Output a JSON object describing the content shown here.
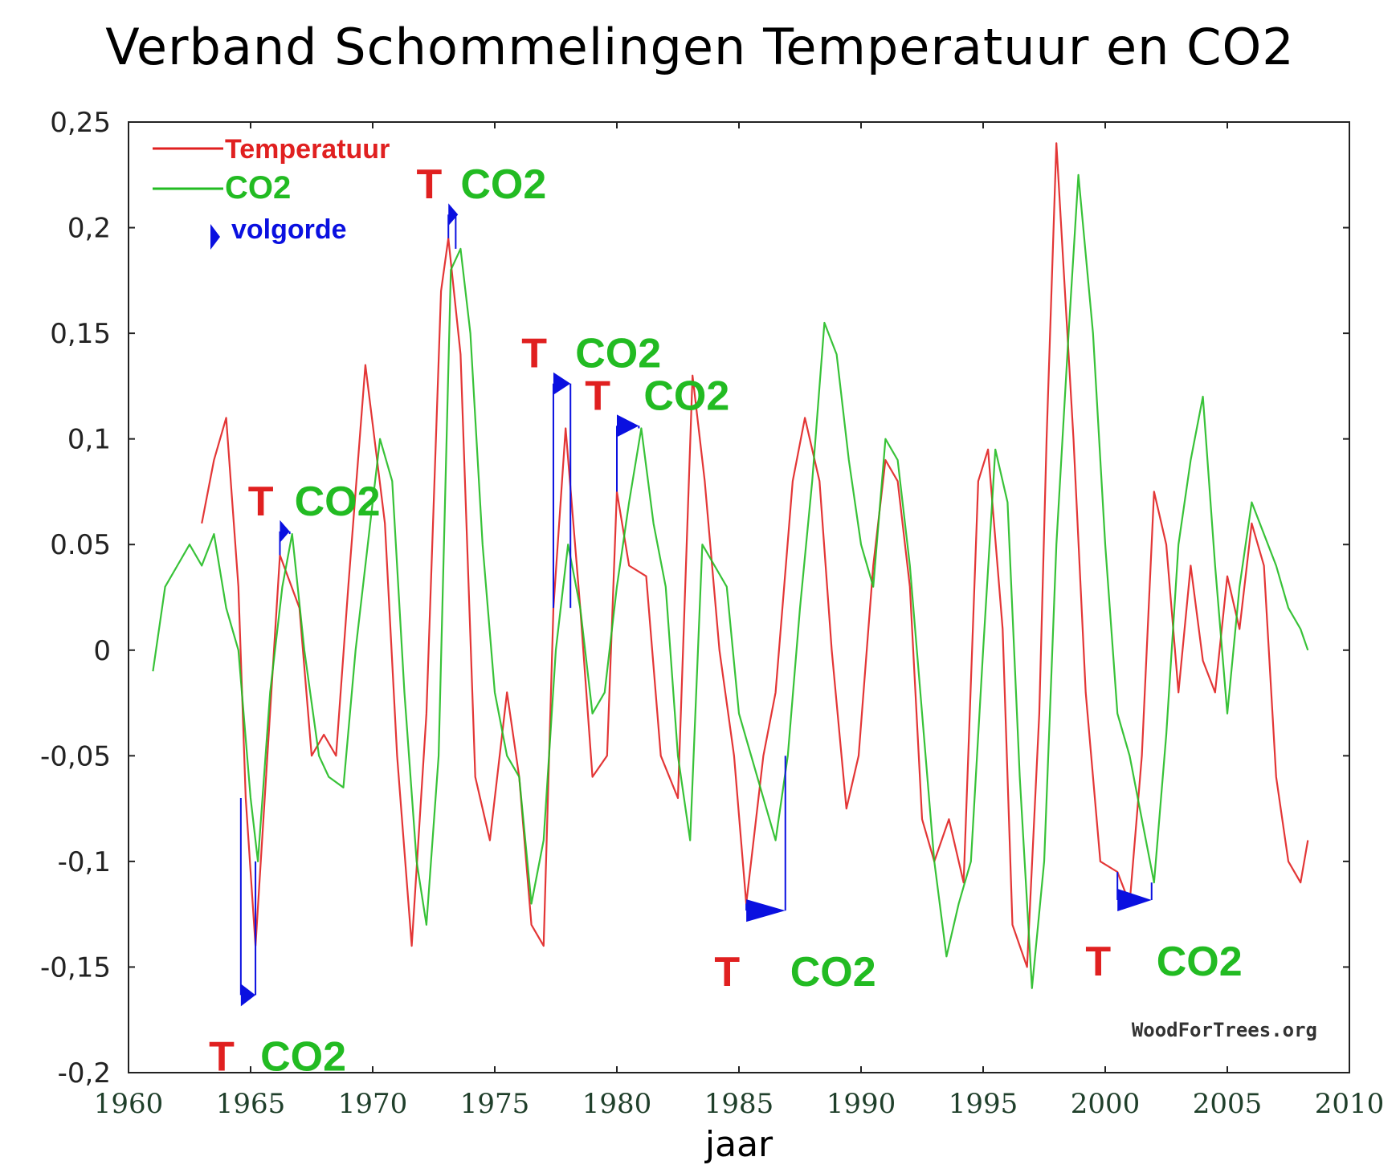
{
  "title": "Verband Schommelingen Temperatuur en CO2",
  "colors": {
    "temperature": "#e02020",
    "co2": "#22bb22",
    "arrow": "#0a10e0",
    "frame": "#222222"
  },
  "chart_data": {
    "type": "line",
    "xlabel": "jaar",
    "ylabel": "",
    "xlim": [
      1960,
      2010
    ],
    "ylim": [
      -0.2,
      0.25
    ],
    "x_ticks": [
      "1960",
      "1965",
      "1970",
      "1975",
      "1980",
      "1985",
      "1990",
      "1995",
      "2000",
      "2005",
      "2010"
    ],
    "x_tick_values": [
      1960,
      1965,
      1970,
      1975,
      1980,
      1985,
      1990,
      1995,
      2000,
      2005,
      2010
    ],
    "y_ticks": [
      "0,25",
      "0,2",
      "0,15",
      "0,1",
      "0.05",
      "0",
      "-0,05",
      "-0,1",
      "-0,15",
      "-0,2"
    ],
    "y_tick_values": [
      0.25,
      0.2,
      0.15,
      0.1,
      0.05,
      0,
      -0.05,
      -0.1,
      -0.15,
      -0.2
    ],
    "grid": false,
    "legend_position": "top-left",
    "legend": [
      {
        "name": "Temperatuur",
        "color": "#e02020"
      },
      {
        "name": "CO2",
        "color": "#22bb22"
      },
      {
        "name": "volgorde",
        "color": "#0a10e0",
        "symbol": "arrow"
      }
    ],
    "series": [
      {
        "name": "Temperatuur",
        "color": "#e02020",
        "x": [
          1963.0,
          1963.5,
          1964.0,
          1964.5,
          1964.8,
          1965.2,
          1966.2,
          1967.0,
          1967.5,
          1968.0,
          1968.5,
          1969.0,
          1969.7,
          1970.5,
          1971.0,
          1971.6,
          1972.2,
          1972.8,
          1973.1,
          1973.6,
          1974.2,
          1974.8,
          1975.5,
          1976.0,
          1976.5,
          1977.0,
          1977.4,
          1977.9,
          1978.5,
          1979.0,
          1979.6,
          1980.0,
          1980.5,
          1981.2,
          1981.8,
          1982.5,
          1983.1,
          1983.6,
          1984.2,
          1984.8,
          1985.3,
          1986.0,
          1986.5,
          1987.2,
          1987.7,
          1988.3,
          1988.8,
          1989.4,
          1989.9,
          1990.5,
          1991.0,
          1991.5,
          1992.0,
          1992.5,
          1993.0,
          1993.6,
          1994.2,
          1994.8,
          1995.2,
          1995.8,
          1996.2,
          1996.8,
          1997.3,
          1997.6,
          1998.0,
          1998.3,
          1998.7,
          1999.2,
          1999.8,
          2000.5,
          2001.0,
          2001.5,
          2002.0,
          2002.5,
          2003.0,
          2003.5,
          2004.0,
          2004.5,
          2005.0,
          2005.5,
          2006.0,
          2006.5,
          2007.0,
          2007.5,
          2008.0,
          2008.3
        ],
        "values": [
          0.06,
          0.09,
          0.11,
          0.03,
          -0.07,
          -0.14,
          0.045,
          0.02,
          -0.05,
          -0.04,
          -0.05,
          0.03,
          0.135,
          0.06,
          -0.05,
          -0.14,
          -0.03,
          0.17,
          0.195,
          0.14,
          -0.06,
          -0.09,
          -0.02,
          -0.06,
          -0.13,
          -0.14,
          0.02,
          0.105,
          0.02,
          -0.06,
          -0.05,
          0.075,
          0.04,
          0.035,
          -0.05,
          -0.07,
          0.13,
          0.08,
          0.0,
          -0.05,
          -0.12,
          -0.05,
          -0.02,
          0.08,
          0.11,
          0.08,
          0.0,
          -0.075,
          -0.05,
          0.04,
          0.09,
          0.08,
          0.03,
          -0.08,
          -0.1,
          -0.08,
          -0.11,
          0.08,
          0.095,
          0.01,
          -0.13,
          -0.15,
          -0.03,
          0.1,
          0.24,
          0.18,
          0.1,
          -0.02,
          -0.1,
          -0.105,
          -0.12,
          -0.05,
          0.075,
          0.05,
          -0.02,
          0.04,
          -0.005,
          -0.02,
          0.035,
          0.01,
          0.06,
          0.04,
          -0.06,
          -0.1,
          -0.11,
          -0.09
        ]
      },
      {
        "name": "CO2",
        "color": "#22bb22",
        "x": [
          1961.0,
          1961.5,
          1962.0,
          1962.5,
          1963.0,
          1963.5,
          1964.0,
          1964.5,
          1965.0,
          1965.3,
          1965.8,
          1966.3,
          1966.7,
          1967.2,
          1967.8,
          1968.2,
          1968.8,
          1969.3,
          1969.8,
          1970.3,
          1970.8,
          1971.3,
          1971.8,
          1972.2,
          1972.7,
          1973.2,
          1973.6,
          1974.0,
          1974.5,
          1975.0,
          1975.5,
          1976.0,
          1976.5,
          1977.0,
          1977.5,
          1978.0,
          1978.5,
          1979.0,
          1979.5,
          1980.0,
          1980.5,
          1981.0,
          1981.5,
          1982.0,
          1982.5,
          1983.0,
          1983.5,
          1984.0,
          1984.5,
          1985.0,
          1985.5,
          1986.0,
          1986.5,
          1987.0,
          1987.5,
          1988.0,
          1988.5,
          1989.0,
          1989.5,
          1990.0,
          1990.5,
          1991.0,
          1991.5,
          1992.0,
          1992.5,
          1993.0,
          1993.5,
          1994.0,
          1994.5,
          1995.0,
          1995.5,
          1996.0,
          1996.5,
          1997.0,
          1997.5,
          1998.0,
          1998.5,
          1998.9,
          1999.5,
          2000.0,
          2000.5,
          2001.0,
          2001.5,
          2002.0,
          2002.5,
          2003.0,
          2003.5,
          2004.0,
          2004.5,
          2005.0,
          2005.5,
          2006.0,
          2006.5,
          2007.0,
          2007.5,
          2008.0,
          2008.3
        ],
        "values": [
          -0.01,
          0.03,
          0.04,
          0.05,
          0.04,
          0.055,
          0.02,
          0.0,
          -0.07,
          -0.1,
          -0.02,
          0.03,
          0.055,
          0.0,
          -0.05,
          -0.06,
          -0.065,
          0.0,
          0.05,
          0.1,
          0.08,
          -0.02,
          -0.1,
          -0.13,
          -0.05,
          0.18,
          0.19,
          0.15,
          0.05,
          -0.02,
          -0.05,
          -0.06,
          -0.12,
          -0.09,
          0.0,
          0.05,
          0.02,
          -0.03,
          -0.02,
          0.03,
          0.07,
          0.105,
          0.06,
          0.03,
          -0.05,
          -0.09,
          0.05,
          0.04,
          0.03,
          -0.03,
          -0.05,
          -0.07,
          -0.09,
          -0.05,
          0.02,
          0.08,
          0.155,
          0.14,
          0.09,
          0.05,
          0.03,
          0.1,
          0.09,
          0.04,
          -0.03,
          -0.1,
          -0.145,
          -0.12,
          -0.1,
          0.0,
          0.095,
          0.07,
          -0.06,
          -0.16,
          -0.1,
          0.05,
          0.15,
          0.225,
          0.15,
          0.05,
          -0.03,
          -0.05,
          -0.08,
          -0.11,
          -0.04,
          0.05,
          0.09,
          0.12,
          0.04,
          -0.03,
          0.03,
          0.07,
          0.055,
          0.04,
          0.02,
          0.01,
          0.0
        ]
      }
    ],
    "annotations": [
      {
        "t_label": "T",
        "co2_label": "CO2",
        "from_x": 1964.6,
        "to_x": 1965.2,
        "label_y": -0.18
      },
      {
        "t_label": "T",
        "co2_label": "CO2",
        "from_x": 1966.2,
        "to_x": 1966.6,
        "label_y": 0.06
      },
      {
        "t_label": "T",
        "co2_label": "CO2",
        "from_x": 1973.1,
        "to_x": 1973.4,
        "label_y": 0.21
      },
      {
        "t_label": "T",
        "co2_label": "CO2",
        "from_x": 1977.4,
        "to_x": 1978.1,
        "label_y": 0.13
      },
      {
        "t_label": "T",
        "co2_label": "CO2",
        "from_x": 1980.0,
        "to_x": 1980.9,
        "label_y": 0.11
      },
      {
        "t_label": "T",
        "co2_label": "CO2",
        "from_x": 1985.3,
        "to_x": 1986.9,
        "label_y": -0.14
      },
      {
        "t_label": "T",
        "co2_label": "CO2",
        "from_x": 2000.5,
        "to_x": 2001.9,
        "label_y": -0.135
      }
    ],
    "watermark": "WoodForTrees.org"
  }
}
